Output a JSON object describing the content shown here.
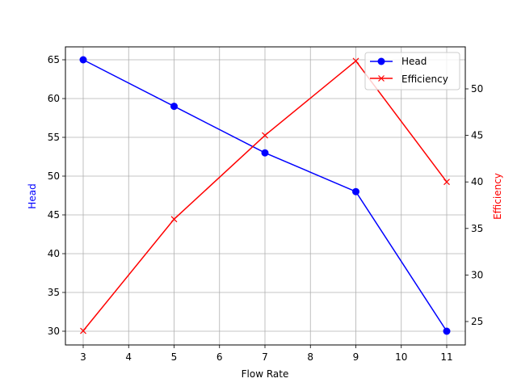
{
  "chart_data": {
    "type": "line",
    "title": "",
    "xlabel": "Flow Rate",
    "ylabel": "Head",
    "y2label": "Efficiency",
    "x": [
      3,
      5,
      7,
      9,
      11
    ],
    "xticks": [
      3,
      4,
      5,
      6,
      7,
      8,
      9,
      10,
      11
    ],
    "yticks": [
      30,
      35,
      40,
      45,
      50,
      55,
      60,
      65
    ],
    "y2ticks": [
      25,
      30,
      35,
      40,
      45,
      50
    ],
    "xlim": [
      2.6,
      11.4
    ],
    "ylim": [
      28.2,
      66.7
    ],
    "y2lim": [
      23.0,
      54.1
    ],
    "grid": true,
    "legend_position": "upper right",
    "series": [
      {
        "name": "Head",
        "axis": "left",
        "color": "#0000ff",
        "marker": "circle",
        "values": [
          65,
          59,
          53,
          48,
          30
        ]
      },
      {
        "name": "Efficiency",
        "axis": "right",
        "color": "#ff0000",
        "marker": "x",
        "values": [
          24,
          36,
          45,
          53,
          40
        ]
      }
    ]
  },
  "legend": {
    "items": [
      {
        "label": "Head"
      },
      {
        "label": "Efficiency"
      }
    ]
  },
  "labels": {
    "xlabel": "Flow Rate",
    "ylabel": "Head",
    "y2label": "Efficiency"
  }
}
